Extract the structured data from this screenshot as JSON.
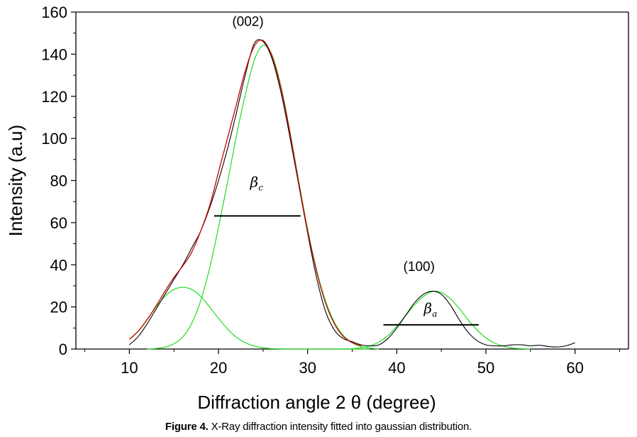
{
  "caption": {
    "label": "Figure 4.",
    "text": " X-Ray diffraction intensity fitted into gaussian distribution."
  },
  "colors": {
    "measured": "#000000",
    "cumulative_fit": "#cc0000",
    "gaussian_components": "#33dd33",
    "axes": "#000000"
  },
  "chart_data": {
    "type": "line",
    "xlabel": "Diffraction angle 2 θ (degree)",
    "ylabel": "Intensity (a.u)",
    "xlim": [
      4,
      66
    ],
    "ylim": [
      0,
      160
    ],
    "xticks": [
      10,
      20,
      30,
      40,
      50,
      60
    ],
    "yticks": [
      0,
      20,
      40,
      60,
      80,
      100,
      120,
      140,
      160
    ],
    "grid": false,
    "series": [
      {
        "key": "measured",
        "x": [
          10,
          11,
          12,
          13,
          14,
          15,
          16,
          17,
          18,
          19,
          20,
          21,
          22,
          23,
          24,
          25,
          26,
          27,
          28,
          29,
          30,
          31,
          32,
          33,
          34,
          35,
          36,
          37,
          38,
          39,
          40,
          41,
          42,
          43,
          44,
          45,
          46,
          47,
          48,
          49,
          50,
          51,
          52,
          53,
          54,
          55,
          56,
          57,
          58,
          59,
          60
        ],
        "y": [
          2,
          6,
          12,
          19,
          26,
          33,
          40,
          48,
          56,
          67,
          80,
          95,
          112,
          130,
          145,
          146,
          138,
          122,
          101,
          78,
          55,
          34,
          18,
          9,
          5,
          3.5,
          2,
          1.5,
          2,
          5,
          10,
          16,
          22,
          26,
          27.5,
          26,
          21,
          14,
          8,
          4,
          2,
          1.5,
          1.5,
          2,
          2,
          1.5,
          1.8,
          1.2,
          1,
          1.5,
          3
        ]
      },
      {
        "key": "cumulative_fit",
        "x": [
          10,
          11,
          12,
          13,
          14,
          15,
          16,
          17,
          18,
          19,
          20,
          21,
          22,
          23,
          24,
          25,
          26,
          27,
          28,
          29,
          30,
          31,
          32,
          33,
          34,
          35,
          36
        ],
        "y": [
          4.6,
          8.5,
          14,
          20.5,
          27.5,
          34,
          39.5,
          46,
          56,
          68,
          84,
          100,
          116,
          132,
          143.7,
          146.5,
          139,
          124,
          103,
          79,
          56,
          37,
          22,
          12,
          6,
          3,
          1.5
        ]
      },
      {
        "key": "peak-1",
        "x": [
          10,
          11,
          12,
          13,
          14,
          15,
          16,
          17,
          18,
          19,
          20,
          21,
          22,
          23,
          24,
          25,
          26,
          27,
          28,
          29,
          30,
          31,
          32,
          33,
          34,
          35,
          36,
          37
        ],
        "y": [
          4.6,
          8.6,
          14,
          20,
          25,
          28.3,
          29.3,
          28.3,
          25,
          20,
          14.6,
          9.6,
          5.6,
          3,
          1.4,
          0.6,
          0.2,
          0.1,
          0,
          0,
          0,
          0,
          0,
          0,
          0,
          0,
          0,
          0
        ]
      },
      {
        "key": "peak-2",
        "x": [
          12,
          13,
          14,
          15,
          16,
          17,
          18,
          19,
          20,
          21,
          22,
          23,
          24,
          25,
          26,
          27,
          28,
          29,
          30,
          31,
          32,
          33,
          34,
          35,
          36,
          37,
          38
        ],
        "y": [
          0,
          0.3,
          0.9,
          2.5,
          5.8,
          12.2,
          22.9,
          38.4,
          57.7,
          78.9,
          101,
          120.6,
          137,
          144.2,
          139.8,
          124.8,
          103.6,
          79.8,
          56.9,
          37.7,
          23,
          12.7,
          6.5,
          3,
          1.2,
          0.5,
          0
        ]
      },
      {
        "key": "peak-3",
        "x": [
          34,
          35,
          36,
          37,
          38,
          39,
          40,
          41,
          42,
          43,
          44,
          45,
          46,
          47,
          48,
          49,
          50,
          51,
          52,
          53,
          54,
          55
        ],
        "y": [
          0,
          0.2,
          0.6,
          1.5,
          3.3,
          6.4,
          10.8,
          15.9,
          21,
          25,
          27.3,
          26.9,
          23.9,
          19.3,
          13.9,
          9.1,
          5.3,
          2.8,
          1.3,
          0.5,
          0.2,
          0
        ]
      }
    ],
    "annotations": [
      {
        "text": "(002)",
        "x": 23.3,
        "y": 153.5
      },
      {
        "text": "(100)",
        "x": 42.5,
        "y": 37
      },
      {
        "symbol": "β",
        "subscript": "c",
        "x": 24,
        "y": 77
      },
      {
        "symbol": "β",
        "subscript": "a",
        "x": 43.5,
        "y": 17
      }
    ],
    "fwhm_lines": [
      {
        "name": "beta-c",
        "x": [
          19.5,
          29.2
        ],
        "y": 63.2
      },
      {
        "name": "beta-a",
        "x": [
          38.5,
          49.2
        ],
        "y": 11.5
      }
    ]
  }
}
